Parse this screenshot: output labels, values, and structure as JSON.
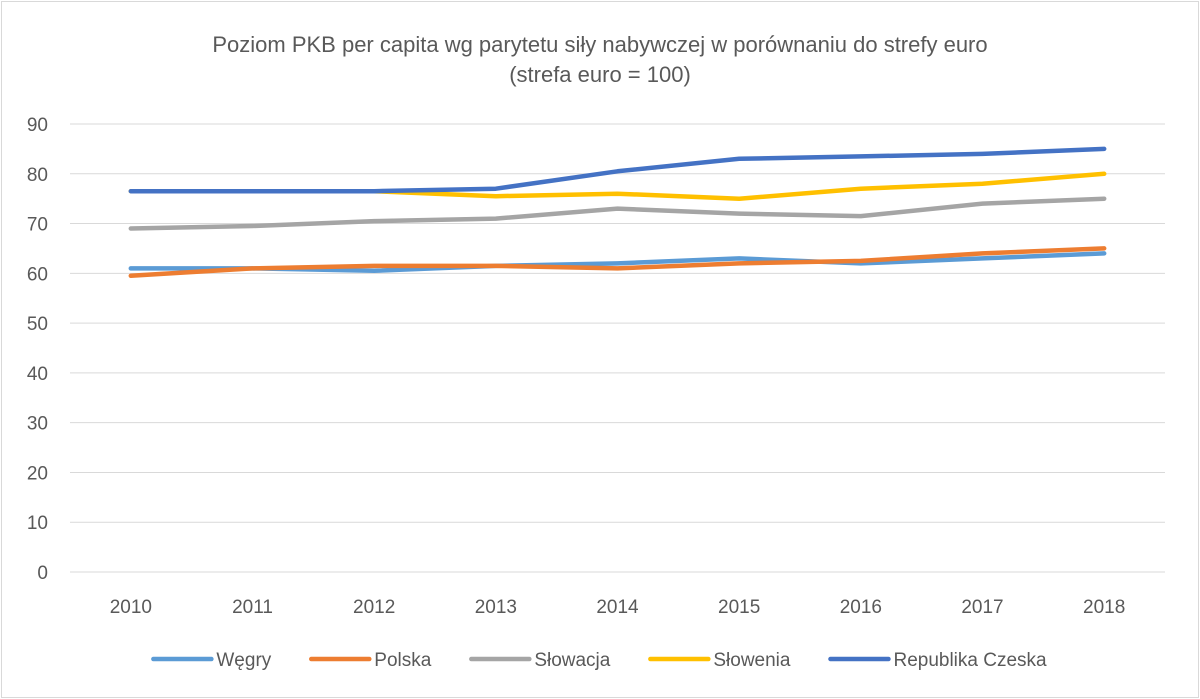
{
  "chart_data": {
    "type": "line",
    "title_line1": "Poziom PKB per capita wg parytetu siły nabywczej w porównaniu do strefy euro",
    "title_line2": "(strefa euro = 100)",
    "x": [
      "2010",
      "2011",
      "2012",
      "2013",
      "2014",
      "2015",
      "2016",
      "2017",
      "2018"
    ],
    "ylim": [
      0,
      90
    ],
    "yticks": [
      0,
      10,
      20,
      30,
      40,
      50,
      60,
      70,
      80,
      90
    ],
    "grid": true,
    "legend_position": "bottom",
    "series": [
      {
        "name": "Węgry",
        "color": "#5b9bd5",
        "values": [
          61,
          61,
          60.5,
          61.5,
          62,
          63,
          62,
          63,
          64
        ]
      },
      {
        "name": "Polska",
        "color": "#ed7d31",
        "values": [
          59.5,
          61,
          61.5,
          61.5,
          61,
          62,
          62.5,
          64,
          65
        ]
      },
      {
        "name": "Słowacja",
        "color": "#a5a5a5",
        "values": [
          69,
          69.5,
          70.5,
          71,
          73,
          72,
          71.5,
          74,
          75
        ]
      },
      {
        "name": "Słowenia",
        "color": "#ffc000",
        "values": [
          76.5,
          76.5,
          76.5,
          75.5,
          76,
          75,
          77,
          78,
          80
        ]
      },
      {
        "name": "Republika Czeska",
        "color": "#4472c4",
        "values": [
          76.5,
          76.5,
          76.5,
          77,
          80.5,
          83,
          83.5,
          84,
          85
        ]
      }
    ]
  }
}
